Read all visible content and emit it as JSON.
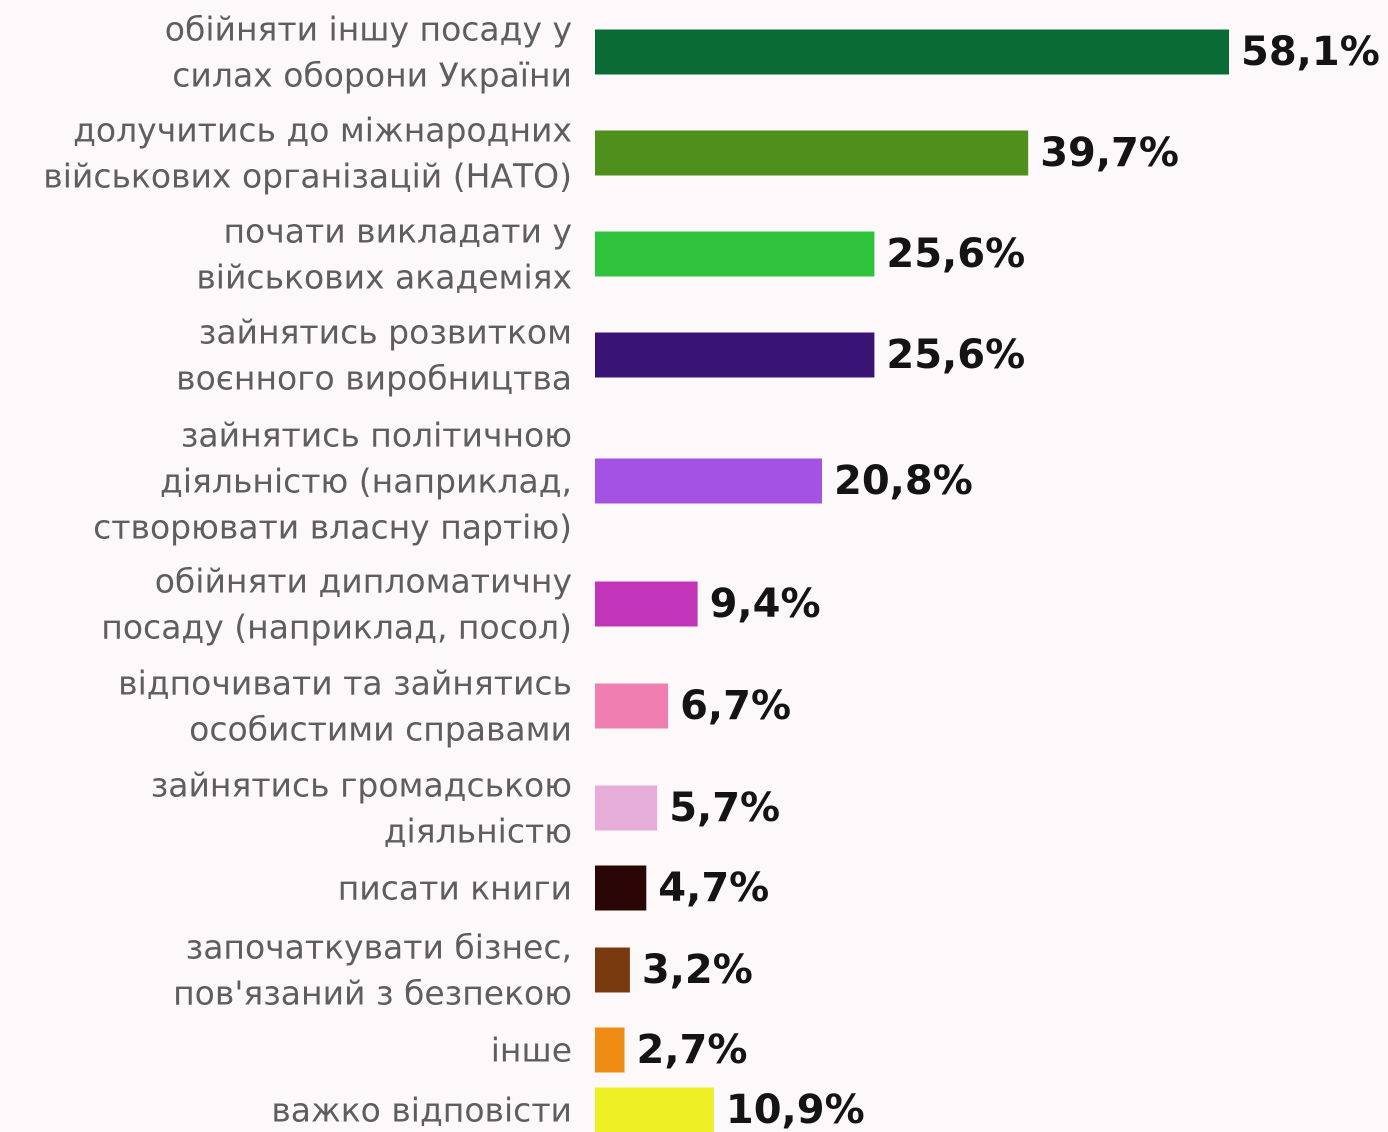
{
  "chart_data": {
    "type": "bar",
    "orientation": "horizontal",
    "categories": [
      [
        "обійняти іншу посаду у",
        "силах оборони України"
      ],
      [
        "долучитись до міжнародних",
        "військових організацій (НАТО)"
      ],
      [
        "почати викладати у",
        "військових академіях"
      ],
      [
        "зайнятись розвитком",
        "воєнного виробництва"
      ],
      [
        "зайнятись політичною",
        "діяльністю (наприклад,",
        "створювати власну партію)"
      ],
      [
        "обійняти дипломатичну",
        "посаду (наприклад, посол)"
      ],
      [
        "відпочивати та зайнятись",
        "особистими справами"
      ],
      [
        "зайнятись громадською",
        "діяльністю"
      ],
      [
        "писати книги"
      ],
      [
        "започаткувати бізнес,",
        "пов'язаний з безпекою"
      ],
      [
        "інше"
      ],
      [
        "важко відповісти"
      ]
    ],
    "values": [
      58.1,
      39.7,
      25.6,
      25.6,
      20.8,
      9.4,
      6.7,
      5.7,
      4.7,
      3.2,
      2.7,
      10.9
    ],
    "value_labels": [
      "58,1%",
      "39,7%",
      "25,6%",
      "25,6%",
      "20,8%",
      "9,4%",
      "6,7%",
      "5,7%",
      "4,7%",
      "3,2%",
      "2,7%",
      "10,9%"
    ],
    "colors": [
      "#0b6b35",
      "#4f8f1c",
      "#2fc23b",
      "#3a1475",
      "#a352e3",
      "#c234b8",
      "#ee7fb0",
      "#e6add8",
      "#2a0606",
      "#7a3a0f",
      "#ef8a13",
      "#eeee25"
    ],
    "xlim": [
      0,
      58.1
    ],
    "grid": false,
    "legend": "none"
  }
}
